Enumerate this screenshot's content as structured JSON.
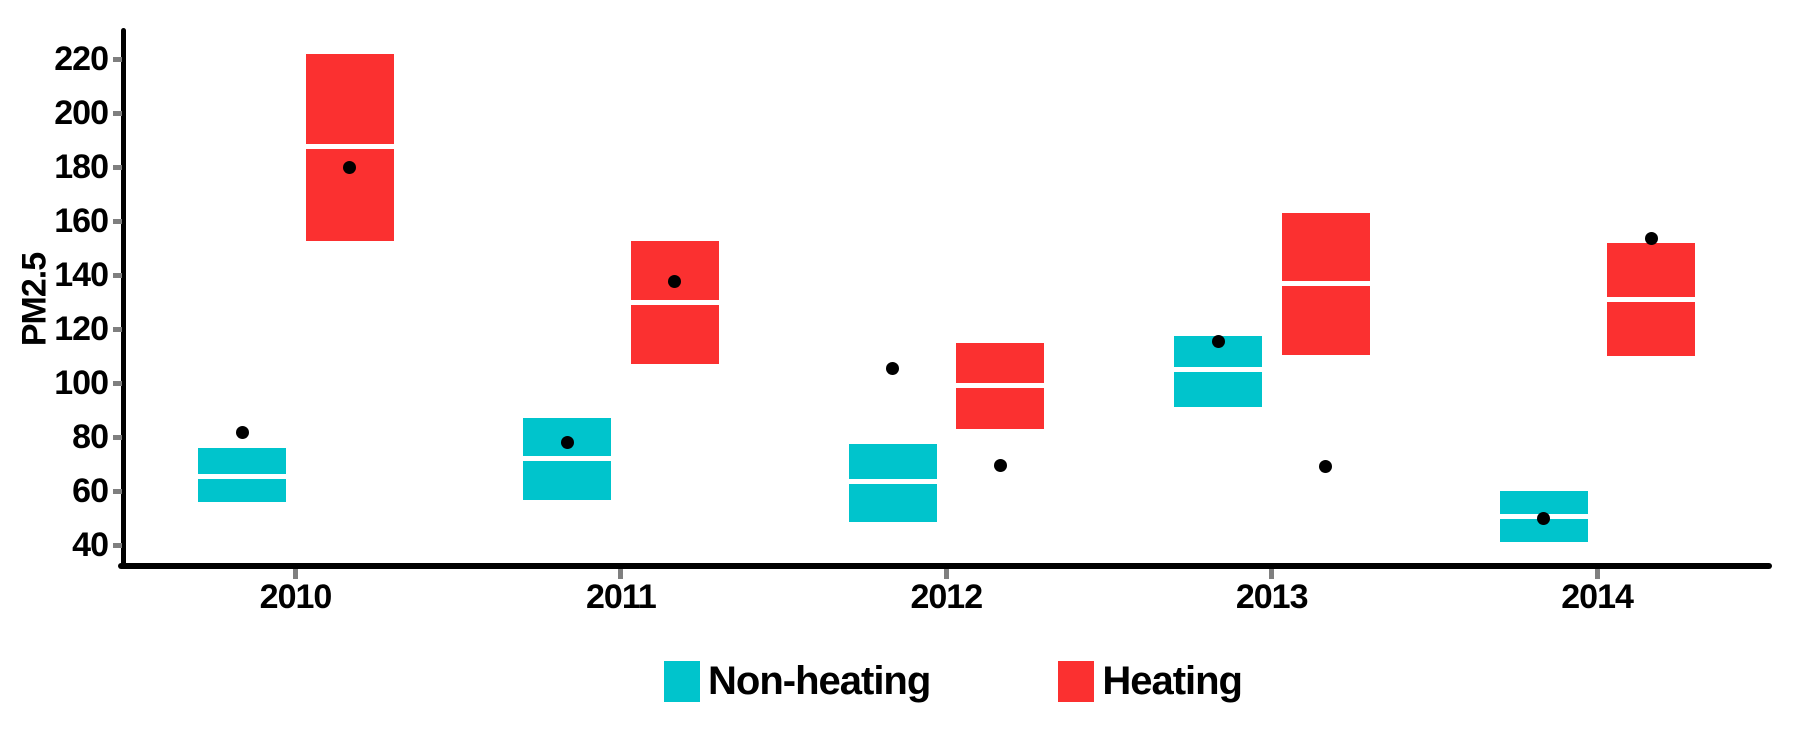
{
  "chart_data": {
    "type": "crossbar-boxplot",
    "title": "",
    "xlabel": "",
    "ylabel": "PM2.5",
    "categories": [
      "2010",
      "2011",
      "2012",
      "2013",
      "2014"
    ],
    "y_ticks": [
      40,
      60,
      80,
      100,
      120,
      140,
      160,
      180,
      200,
      220
    ],
    "ylim": [
      33,
      231
    ],
    "grid": false,
    "background": "#ffffff",
    "axis_color": "#000000",
    "tick_mark_color": "#7f7f7f",
    "point_color": "#000000",
    "series": [
      {
        "name": "Non-heating",
        "color": "#00c4cc",
        "boxes": [
          {
            "category": "2010",
            "low": 56,
            "mid": 65.5,
            "high": 76,
            "point": 81.5
          },
          {
            "category": "2011",
            "low": 56.5,
            "mid": 72,
            "high": 87,
            "point": 78
          },
          {
            "category": "2012",
            "low": 48.5,
            "mid": 63.5,
            "high": 77.5,
            "point": 105.5
          },
          {
            "category": "2013",
            "low": 91,
            "mid": 105,
            "high": 117.5,
            "point": 115.5
          },
          {
            "category": "2014",
            "low": 41,
            "mid": 50.5,
            "high": 60,
            "point": 50
          }
        ]
      },
      {
        "name": "Heating",
        "color": "#fb3030",
        "boxes": [
          {
            "category": "2010",
            "low": 152.5,
            "mid": 187.5,
            "high": 222,
            "point": 180
          },
          {
            "category": "2011",
            "low": 107,
            "mid": 130,
            "high": 152.5,
            "point": 137.5
          },
          {
            "category": "2012",
            "low": 83,
            "mid": 99,
            "high": 115,
            "point": 69.5
          },
          {
            "category": "2013",
            "low": 110.5,
            "mid": 137,
            "high": 163,
            "point": 69
          },
          {
            "category": "2014",
            "low": 110,
            "mid": 131,
            "high": 152,
            "point": 153.5
          }
        ]
      }
    ],
    "legend": {
      "position": "bottom",
      "items": [
        {
          "label": "Non-heating",
          "color": "#00c4cc"
        },
        {
          "label": "Heating",
          "color": "#fb3030"
        }
      ]
    }
  }
}
